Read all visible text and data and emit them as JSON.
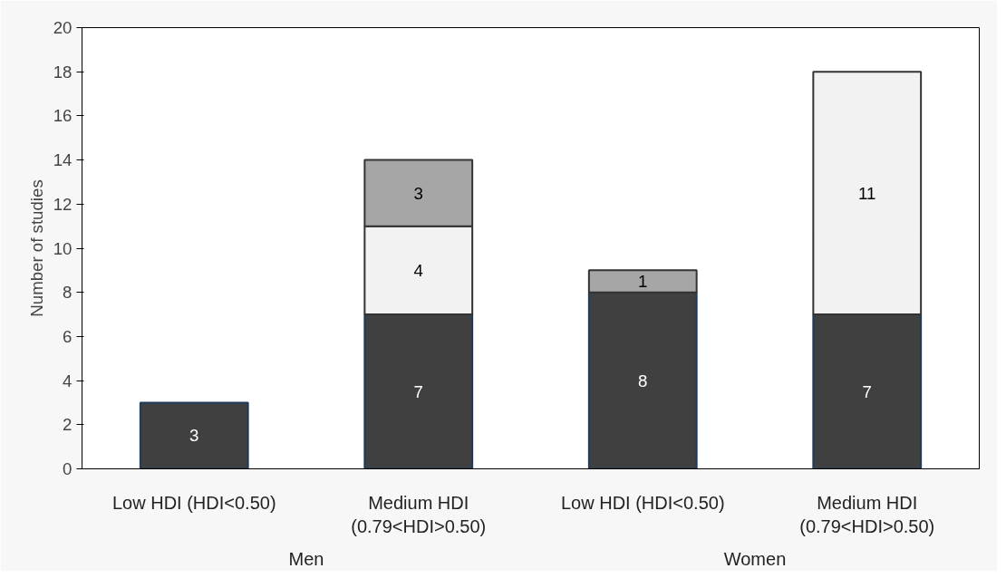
{
  "chart_data": {
    "type": "bar",
    "stacked": true,
    "ylabel": "Number of studies",
    "categories": [
      "Low HDI (HDI<0.50)",
      "Medium HDI (0.79<HDI>0.50)",
      "Low HDI (HDI<0.50)",
      "Medium HDI (0.79<HDI>0.50)"
    ],
    "series": [
      {
        "color": "#404040",
        "values": [
          3,
          7,
          8,
          7
        ]
      },
      {
        "color": "#f2f2f2",
        "values": [
          null,
          4,
          null,
          11
        ]
      },
      {
        "color": "#a6a6a6",
        "values": [
          null,
          3,
          1,
          null
        ]
      }
    ],
    "ylim": [
      0,
      20
    ],
    "yticks": [
      0,
      2,
      4,
      6,
      8,
      10,
      12,
      14,
      16,
      18,
      20
    ],
    "data_labels": true,
    "grid": false,
    "annotations": [
      "Men",
      "Women"
    ]
  }
}
